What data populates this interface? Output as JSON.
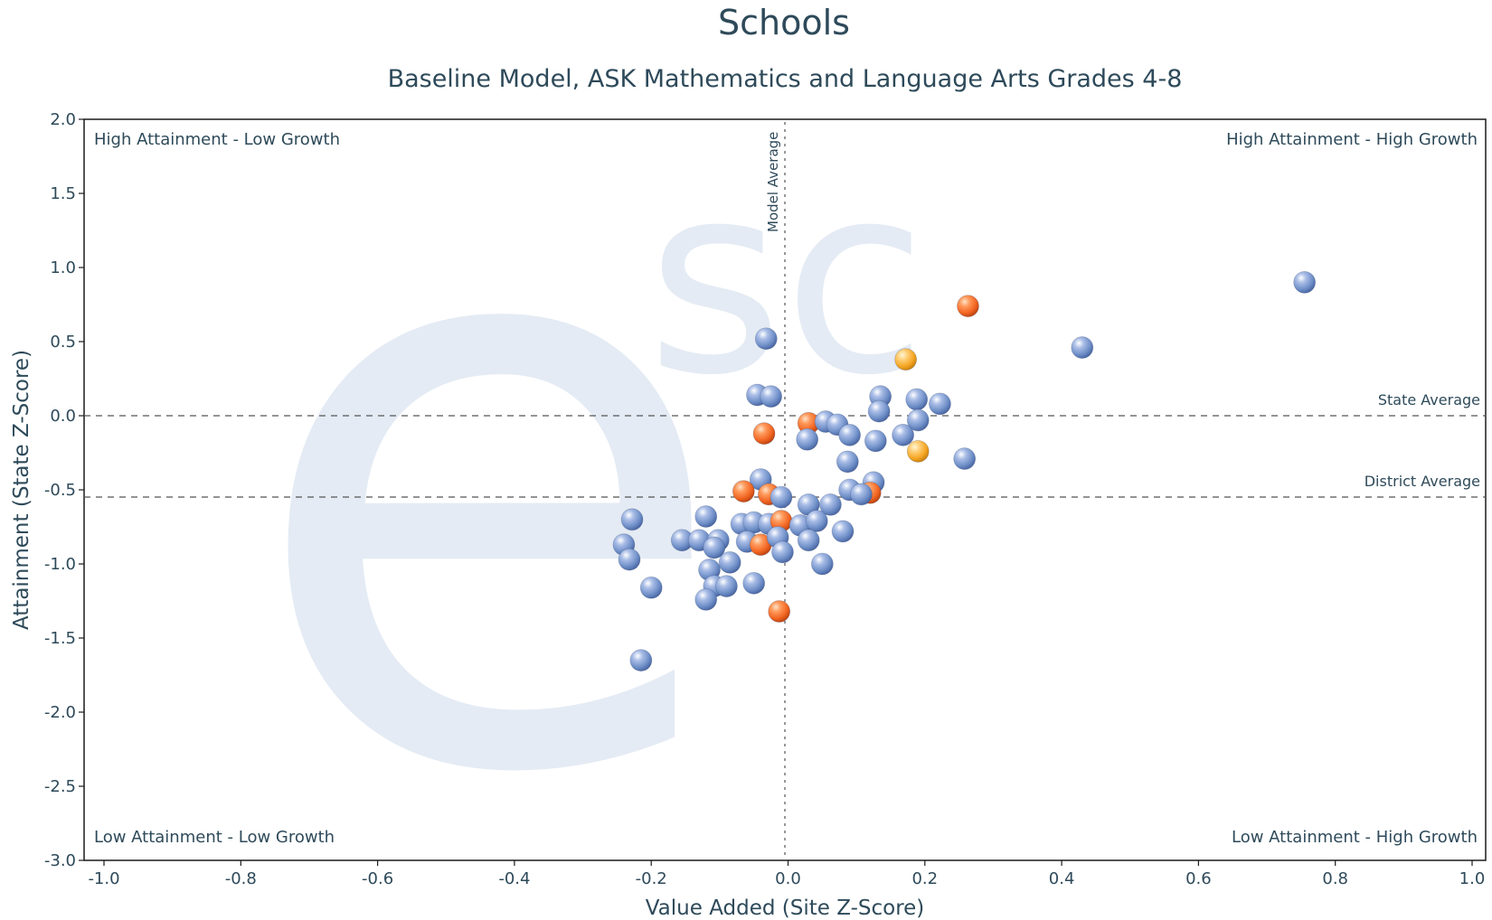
{
  "chart_data": {
    "type": "scatter",
    "title": "Schools",
    "subtitle": "Baseline Model, ASK Mathematics and Language Arts Grades 4-8",
    "xlabel": "Value Added (Site Z-Score)",
    "ylabel": "Attainment (State Z-Score)",
    "xlim": [
      -1.0,
      1.0
    ],
    "ylim": [
      -3.0,
      2.0
    ],
    "xticks": [
      "-1.0",
      "-0.8",
      "-0.6",
      "-0.4",
      "-0.2",
      "0.0",
      "0.2",
      "0.4",
      "0.6",
      "0.8",
      "1.0"
    ],
    "yticks": [
      "2.0",
      "1.5",
      "1.0",
      "0.5",
      "0.0",
      "-0.5",
      "-1.0",
      "-1.5",
      "-2.0",
      "-2.5",
      "-3.0"
    ],
    "quadrant_labels": {
      "top_left": "High Attainment - Low Growth",
      "top_right": "High Attainment - High Growth",
      "bottom_left": "Low Attainment - Low Growth",
      "bottom_right": "Low Attainment - High Growth"
    },
    "reference_lines": [
      {
        "label": "Model Average",
        "axis": "x",
        "value": 0.0
      },
      {
        "label": "State Average",
        "axis": "y",
        "value": 0.0
      },
      {
        "label": "District Average",
        "axis": "y",
        "value": -0.55
      }
    ],
    "watermark": {
      "big": "e",
      "small": "sc"
    },
    "colors": {
      "blue": "#6f8fc8",
      "orange": "#f26522",
      "yellow": "#f5a623",
      "text": "#2e4a5a"
    },
    "grid": false,
    "points": [
      {
        "x": 0.755,
        "y": 0.9,
        "c": "blue"
      },
      {
        "x": 0.43,
        "y": 0.46,
        "c": "blue"
      },
      {
        "x": 0.263,
        "y": 0.74,
        "c": "orange"
      },
      {
        "x": 0.172,
        "y": 0.38,
        "c": "yellow"
      },
      {
        "x": -0.032,
        "y": 0.52,
        "c": "blue"
      },
      {
        "x": -0.045,
        "y": 0.14,
        "c": "blue"
      },
      {
        "x": -0.025,
        "y": 0.13,
        "c": "blue"
      },
      {
        "x": 0.135,
        "y": 0.13,
        "c": "blue"
      },
      {
        "x": 0.188,
        "y": 0.11,
        "c": "blue"
      },
      {
        "x": 0.222,
        "y": 0.08,
        "c": "blue"
      },
      {
        "x": 0.133,
        "y": 0.03,
        "c": "blue"
      },
      {
        "x": 0.03,
        "y": -0.05,
        "c": "orange"
      },
      {
        "x": 0.055,
        "y": -0.04,
        "c": "blue"
      },
      {
        "x": 0.072,
        "y": -0.06,
        "c": "blue"
      },
      {
        "x": 0.19,
        "y": -0.03,
        "c": "blue"
      },
      {
        "x": -0.035,
        "y": -0.12,
        "c": "orange"
      },
      {
        "x": 0.028,
        "y": -0.16,
        "c": "blue"
      },
      {
        "x": 0.09,
        "y": -0.13,
        "c": "blue"
      },
      {
        "x": 0.128,
        "y": -0.17,
        "c": "blue"
      },
      {
        "x": 0.168,
        "y": -0.13,
        "c": "blue"
      },
      {
        "x": 0.19,
        "y": -0.24,
        "c": "yellow"
      },
      {
        "x": 0.258,
        "y": -0.29,
        "c": "blue"
      },
      {
        "x": 0.087,
        "y": -0.31,
        "c": "blue"
      },
      {
        "x": -0.04,
        "y": -0.43,
        "c": "blue"
      },
      {
        "x": 0.125,
        "y": -0.45,
        "c": "blue"
      },
      {
        "x": -0.065,
        "y": -0.51,
        "c": "orange"
      },
      {
        "x": -0.028,
        "y": -0.53,
        "c": "orange"
      },
      {
        "x": -0.01,
        "y": -0.55,
        "c": "blue"
      },
      {
        "x": 0.12,
        "y": -0.52,
        "c": "orange"
      },
      {
        "x": 0.09,
        "y": -0.5,
        "c": "blue"
      },
      {
        "x": 0.107,
        "y": -0.53,
        "c": "blue"
      },
      {
        "x": 0.03,
        "y": -0.6,
        "c": "blue"
      },
      {
        "x": 0.062,
        "y": -0.6,
        "c": "blue"
      },
      {
        "x": -0.228,
        "y": -0.7,
        "c": "blue"
      },
      {
        "x": -0.12,
        "y": -0.68,
        "c": "blue"
      },
      {
        "x": -0.068,
        "y": -0.73,
        "c": "blue"
      },
      {
        "x": -0.05,
        "y": -0.72,
        "c": "blue"
      },
      {
        "x": -0.028,
        "y": -0.73,
        "c": "blue"
      },
      {
        "x": -0.01,
        "y": -0.71,
        "c": "orange"
      },
      {
        "x": 0.018,
        "y": -0.74,
        "c": "blue"
      },
      {
        "x": 0.042,
        "y": -0.71,
        "c": "blue"
      },
      {
        "x": 0.08,
        "y": -0.78,
        "c": "blue"
      },
      {
        "x": -0.24,
        "y": -0.87,
        "c": "blue"
      },
      {
        "x": -0.155,
        "y": -0.84,
        "c": "blue"
      },
      {
        "x": -0.13,
        "y": -0.84,
        "c": "blue"
      },
      {
        "x": -0.102,
        "y": -0.84,
        "c": "blue"
      },
      {
        "x": -0.06,
        "y": -0.85,
        "c": "blue"
      },
      {
        "x": -0.04,
        "y": -0.87,
        "c": "orange"
      },
      {
        "x": -0.015,
        "y": -0.82,
        "c": "blue"
      },
      {
        "x": 0.03,
        "y": -0.84,
        "c": "blue"
      },
      {
        "x": -0.108,
        "y": -0.89,
        "c": "blue"
      },
      {
        "x": -0.008,
        "y": -0.92,
        "c": "blue"
      },
      {
        "x": -0.232,
        "y": -0.97,
        "c": "blue"
      },
      {
        "x": -0.085,
        "y": -0.99,
        "c": "blue"
      },
      {
        "x": 0.05,
        "y": -1.0,
        "c": "blue"
      },
      {
        "x": -0.115,
        "y": -1.04,
        "c": "blue"
      },
      {
        "x": -0.2,
        "y": -1.16,
        "c": "blue"
      },
      {
        "x": -0.108,
        "y": -1.15,
        "c": "blue"
      },
      {
        "x": -0.09,
        "y": -1.15,
        "c": "blue"
      },
      {
        "x": -0.05,
        "y": -1.13,
        "c": "blue"
      },
      {
        "x": -0.12,
        "y": -1.24,
        "c": "blue"
      },
      {
        "x": -0.013,
        "y": -1.32,
        "c": "orange"
      },
      {
        "x": -0.215,
        "y": -1.65,
        "c": "blue"
      }
    ]
  }
}
